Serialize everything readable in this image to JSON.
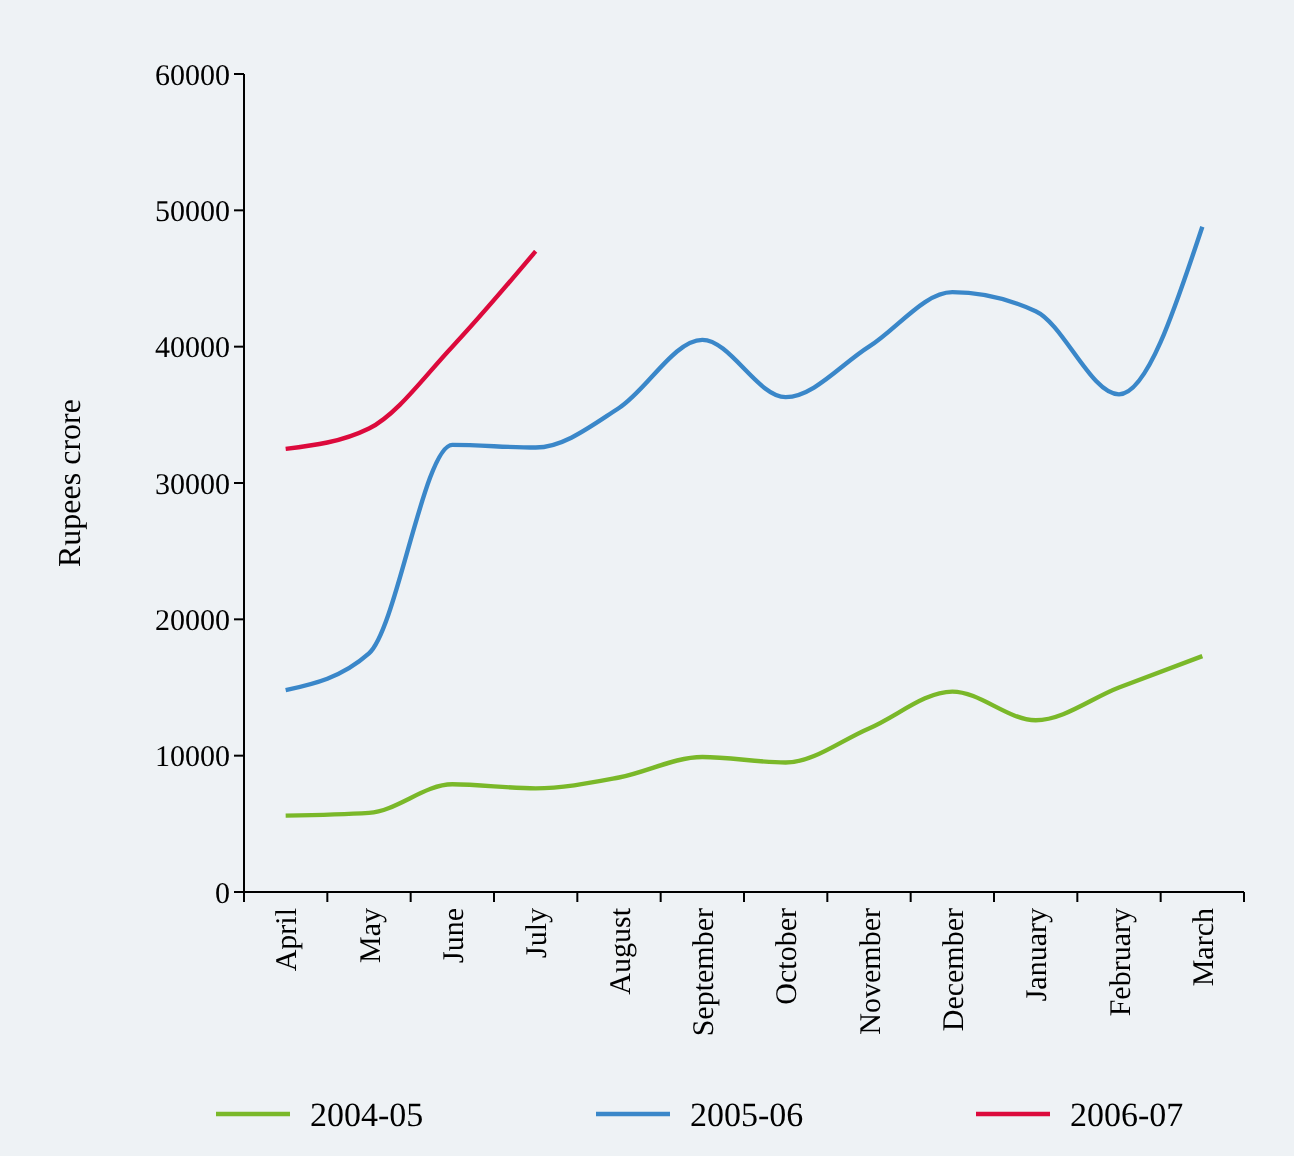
{
  "chart_data": {
    "type": "line",
    "ylabel": "Rupees crore",
    "categories": [
      "April",
      "May",
      "June",
      "July",
      "August",
      "September",
      "October",
      "November",
      "December",
      "January",
      "February",
      "March"
    ],
    "series": [
      {
        "name": "2004-05",
        "color": "#7ab829",
        "values": [
          5600,
          5800,
          7900,
          7600,
          8400,
          9900,
          9500,
          12000,
          14700,
          12600,
          15000,
          17300
        ]
      },
      {
        "name": "2005-06",
        "color": "#3a87c9",
        "values": [
          14800,
          17500,
          32800,
          32600,
          35500,
          40500,
          36300,
          40000,
          44000,
          42600,
          36500,
          48800
        ]
      },
      {
        "name": "2006-07",
        "color": "#dc0a3c",
        "values": [
          32500,
          34000,
          40000,
          47000,
          null,
          null,
          null,
          null,
          null,
          null,
          null,
          null
        ]
      }
    ],
    "ylim": [
      0,
      60000
    ],
    "yticks": [
      0,
      10000,
      20000,
      30000,
      40000,
      50000,
      60000
    ],
    "grid": false,
    "legend": "bottom",
    "marker": "none",
    "line_style": "solid"
  }
}
